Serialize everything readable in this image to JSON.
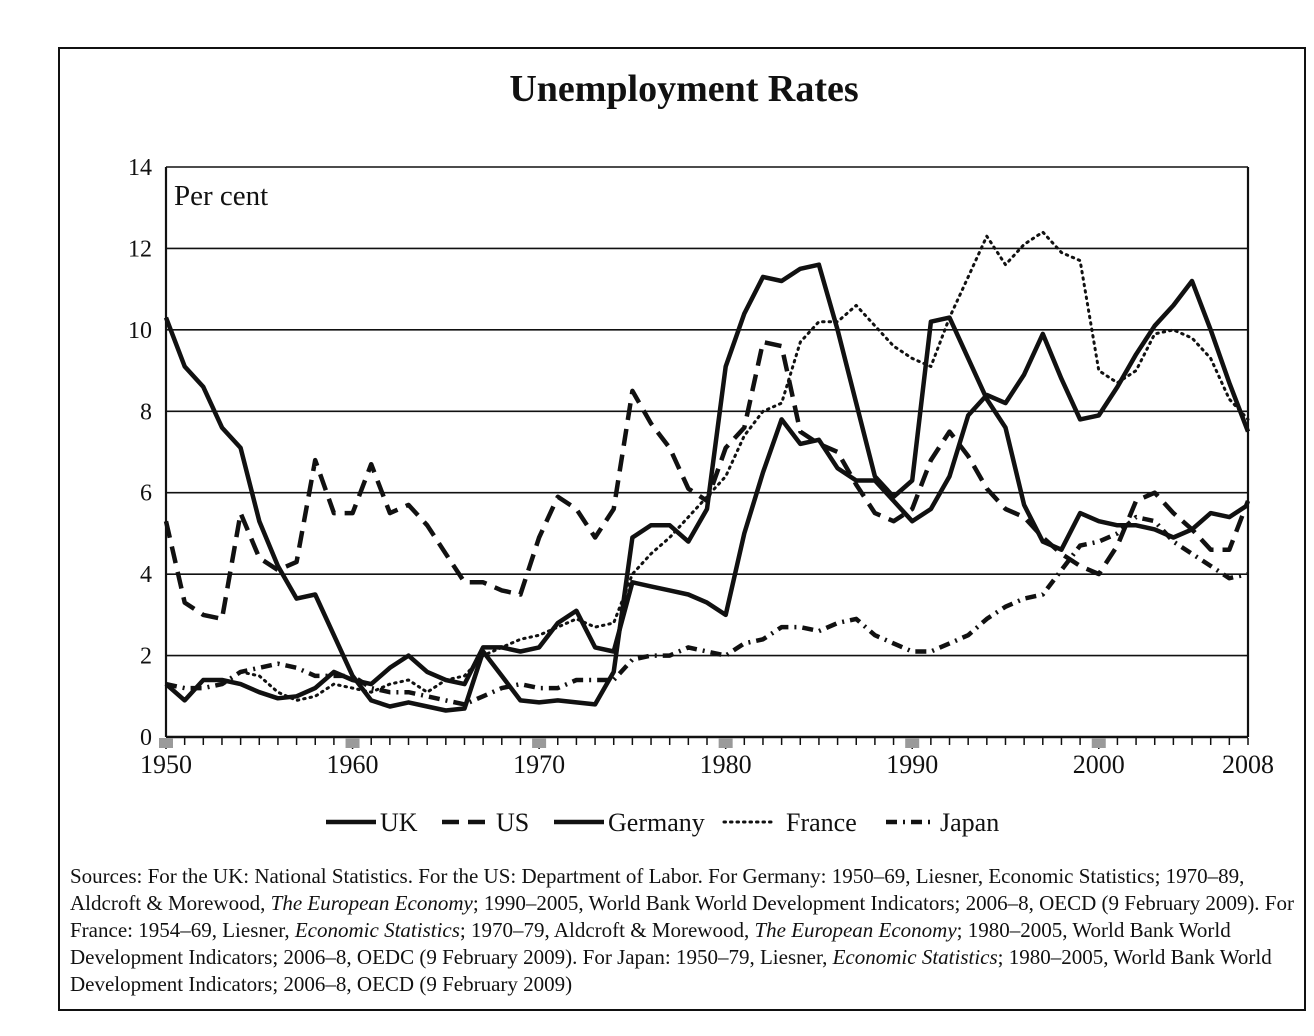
{
  "title": "Unemployment Rates",
  "sources": {
    "p1": "Sources: For the UK: National Statistics. For the US: Department of Labor. For Germany: 1950–69, Liesner, Economic Statistics; 1970–89, Aldcroft & Morewood, ",
    "p1_italic": "The European Economy",
    "p2": "; 1990–2005, World Bank World Development Indicators; 2006–8, OECD (9 February 2009). For France: 1954–69, Liesner, ",
    "p2_italic": "Economic Statistics",
    "p3": "; 1970–79, Aldcroft & Morewood, ",
    "p3_italic": "The European Economy",
    "p4": "; 1980–2005, World Bank World Development Indicators; 2006–8, OEDC (9 February 2009). For Japan: 1950–79, Liesner, ",
    "p4_italic": "Economic Statistics",
    "p5": "; 1980–2005, World Bank World Development Indicators; 2006–8, OECD (9 February 2009)"
  },
  "chart_data": {
    "type": "line",
    "title": "Unemployment Rates",
    "ylabel": "Per cent",
    "xlabel": "",
    "xlim": [
      1950,
      2008
    ],
    "ylim": [
      0,
      14
    ],
    "x_ticks": [
      "1950",
      "1960",
      "1970",
      "1980",
      "1990",
      "2000",
      "2008"
    ],
    "y_ticks": [
      "0",
      "2",
      "4",
      "6",
      "8",
      "10",
      "12",
      "14"
    ],
    "grid": "horizontal",
    "legend_position": "bottom",
    "series": [
      {
        "name": "UK",
        "style": "solid",
        "points": [
          [
            1950,
            1.3
          ],
          [
            1951,
            0.9
          ],
          [
            1952,
            1.4
          ],
          [
            1953,
            1.4
          ],
          [
            1954,
            1.3
          ],
          [
            1955,
            1.1
          ],
          [
            1956,
            0.95
          ],
          [
            1957,
            1.0
          ],
          [
            1958,
            1.2
          ],
          [
            1959,
            1.6
          ],
          [
            1960,
            1.4
          ],
          [
            1961,
            1.3
          ],
          [
            1962,
            1.7
          ],
          [
            1963,
            2.0
          ],
          [
            1964,
            1.6
          ],
          [
            1965,
            1.4
          ],
          [
            1966,
            1.3
          ],
          [
            1967,
            2.2
          ],
          [
            1968,
            2.2
          ],
          [
            1969,
            2.1
          ],
          [
            1970,
            2.2
          ],
          [
            1971,
            2.8
          ],
          [
            1972,
            3.1
          ],
          [
            1973,
            2.2
          ],
          [
            1974,
            2.1
          ],
          [
            1975,
            3.8
          ],
          [
            1976,
            3.7
          ],
          [
            1977,
            3.6
          ],
          [
            1978,
            3.5
          ],
          [
            1979,
            3.3
          ],
          [
            1980,
            3.0
          ],
          [
            1981,
            5.0
          ],
          [
            1982,
            6.5
          ],
          [
            1983,
            7.8
          ],
          [
            1984,
            7.2
          ],
          [
            1985,
            7.3
          ],
          [
            1986,
            6.6
          ],
          [
            1987,
            6.3
          ],
          [
            1988,
            6.3
          ],
          [
            1989,
            5.8
          ],
          [
            1990,
            5.3
          ],
          [
            1991,
            5.6
          ],
          [
            1992,
            6.4
          ],
          [
            1993,
            7.9
          ],
          [
            1994,
            8.4
          ],
          [
            1995,
            8.2
          ],
          [
            1996,
            8.9
          ],
          [
            1997,
            9.9
          ],
          [
            1998,
            8.8
          ],
          [
            1999,
            7.8
          ],
          [
            2000,
            7.9
          ],
          [
            2001,
            8.6
          ],
          [
            2002,
            9.4
          ],
          [
            2003,
            10.1
          ],
          [
            2004,
            10.6
          ],
          [
            2005,
            11.2
          ],
          [
            2006,
            10.0
          ],
          [
            2007,
            8.7
          ],
          [
            2008,
            7.5
          ]
        ]
      },
      {
        "name": "US",
        "style": "dashed",
        "points": [
          [
            1950,
            5.3
          ],
          [
            1951,
            3.3
          ],
          [
            1952,
            3.0
          ],
          [
            1953,
            2.9
          ],
          [
            1954,
            5.5
          ],
          [
            1955,
            4.4
          ],
          [
            1956,
            4.1
          ],
          [
            1957,
            4.3
          ],
          [
            1958,
            6.8
          ],
          [
            1959,
            5.5
          ],
          [
            1960,
            5.5
          ],
          [
            1961,
            6.7
          ],
          [
            1962,
            5.5
          ],
          [
            1963,
            5.7
          ],
          [
            1964,
            5.2
          ],
          [
            1965,
            4.5
          ],
          [
            1966,
            3.8
          ],
          [
            1967,
            3.8
          ],
          [
            1968,
            3.6
          ],
          [
            1969,
            3.5
          ],
          [
            1970,
            4.9
          ],
          [
            1971,
            5.9
          ],
          [
            1972,
            5.6
          ],
          [
            1973,
            4.9
          ],
          [
            1974,
            5.6
          ],
          [
            1975,
            8.5
          ],
          [
            1976,
            7.7
          ],
          [
            1977,
            7.1
          ],
          [
            1978,
            6.1
          ],
          [
            1979,
            5.8
          ],
          [
            1980,
            7.1
          ],
          [
            1981,
            7.6
          ],
          [
            1982,
            9.7
          ],
          [
            1983,
            9.6
          ],
          [
            1984,
            7.5
          ],
          [
            1985,
            7.2
          ],
          [
            1986,
            7.0
          ],
          [
            1987,
            6.2
          ],
          [
            1988,
            5.5
          ],
          [
            1989,
            5.3
          ],
          [
            1990,
            5.6
          ],
          [
            1991,
            6.8
          ],
          [
            1992,
            7.5
          ],
          [
            1993,
            6.9
          ],
          [
            1994,
            6.1
          ],
          [
            1995,
            5.6
          ],
          [
            1996,
            5.4
          ],
          [
            1997,
            4.9
          ],
          [
            1998,
            4.5
          ],
          [
            1999,
            4.2
          ],
          [
            2000,
            4.0
          ],
          [
            2001,
            4.7
          ],
          [
            2002,
            5.8
          ],
          [
            2003,
            6.0
          ],
          [
            2004,
            5.5
          ],
          [
            2005,
            5.1
          ],
          [
            2006,
            4.6
          ],
          [
            2007,
            4.6
          ],
          [
            2008,
            5.8
          ]
        ]
      },
      {
        "name": "Germany",
        "style": "solid",
        "points": [
          [
            1950,
            10.3
          ],
          [
            1951,
            9.1
          ],
          [
            1952,
            8.6
          ],
          [
            1953,
            7.6
          ],
          [
            1954,
            7.1
          ],
          [
            1955,
            5.3
          ],
          [
            1956,
            4.2
          ],
          [
            1957,
            3.4
          ],
          [
            1958,
            3.5
          ],
          [
            1959,
            2.5
          ],
          [
            1960,
            1.5
          ],
          [
            1961,
            0.9
          ],
          [
            1962,
            0.75
          ],
          [
            1963,
            0.85
          ],
          [
            1964,
            0.75
          ],
          [
            1965,
            0.65
          ],
          [
            1966,
            0.7
          ],
          [
            1967,
            2.1
          ],
          [
            1968,
            1.5
          ],
          [
            1969,
            0.9
          ],
          [
            1970,
            0.85
          ],
          [
            1971,
            0.9
          ],
          [
            1972,
            0.85
          ],
          [
            1973,
            0.8
          ],
          [
            1974,
            1.6
          ],
          [
            1975,
            4.9
          ],
          [
            1976,
            5.2
          ],
          [
            1977,
            5.2
          ],
          [
            1978,
            4.8
          ],
          [
            1979,
            5.6
          ],
          [
            1980,
            9.1
          ],
          [
            1981,
            10.4
          ],
          [
            1982,
            11.3
          ],
          [
            1983,
            11.2
          ],
          [
            1984,
            11.5
          ],
          [
            1985,
            11.6
          ],
          [
            1986,
            10.0
          ],
          [
            1987,
            8.2
          ],
          [
            1988,
            6.4
          ],
          [
            1989,
            5.9
          ],
          [
            1990,
            6.3
          ],
          [
            1991,
            10.2
          ],
          [
            1992,
            10.3
          ],
          [
            1993,
            9.3
          ],
          [
            1994,
            8.3
          ],
          [
            1995,
            7.6
          ],
          [
            1996,
            5.7
          ],
          [
            1997,
            4.8
          ],
          [
            1998,
            4.6
          ],
          [
            1999,
            5.5
          ],
          [
            2000,
            5.3
          ],
          [
            2001,
            5.2
          ],
          [
            2002,
            5.2
          ],
          [
            2003,
            5.1
          ],
          [
            2004,
            4.9
          ],
          [
            2005,
            5.1
          ],
          [
            2006,
            5.5
          ],
          [
            2007,
            5.4
          ],
          [
            2008,
            5.7
          ]
        ]
      },
      {
        "name": "France",
        "style": "dotted",
        "points": [
          [
            1954,
            1.6
          ],
          [
            1955,
            1.5
          ],
          [
            1956,
            1.1
          ],
          [
            1957,
            0.9
          ],
          [
            1958,
            1.0
          ],
          [
            1959,
            1.3
          ],
          [
            1960,
            1.2
          ],
          [
            1961,
            1.1
          ],
          [
            1962,
            1.3
          ],
          [
            1963,
            1.4
          ],
          [
            1964,
            1.1
          ],
          [
            1965,
            1.4
          ],
          [
            1966,
            1.5
          ],
          [
            1967,
            2.0
          ],
          [
            1968,
            2.2
          ],
          [
            1969,
            2.4
          ],
          [
            1970,
            2.5
          ],
          [
            1971,
            2.7
          ],
          [
            1972,
            2.9
          ],
          [
            1973,
            2.7
          ],
          [
            1974,
            2.8
          ],
          [
            1975,
            4.0
          ],
          [
            1976,
            4.5
          ],
          [
            1977,
            4.9
          ],
          [
            1978,
            5.4
          ],
          [
            1979,
            5.9
          ],
          [
            1980,
            6.4
          ],
          [
            1981,
            7.4
          ],
          [
            1982,
            8.0
          ],
          [
            1983,
            8.2
          ],
          [
            1984,
            9.7
          ],
          [
            1985,
            10.2
          ],
          [
            1986,
            10.2
          ],
          [
            1987,
            10.6
          ],
          [
            1988,
            10.1
          ],
          [
            1989,
            9.6
          ],
          [
            1990,
            9.3
          ],
          [
            1991,
            9.1
          ],
          [
            1992,
            10.3
          ],
          [
            1993,
            11.3
          ],
          [
            1994,
            12.3
          ],
          [
            1995,
            11.6
          ],
          [
            1996,
            12.1
          ],
          [
            1997,
            12.4
          ],
          [
            1998,
            11.9
          ],
          [
            1999,
            11.7
          ],
          [
            2000,
            9.0
          ],
          [
            2001,
            8.7
          ],
          [
            2002,
            9.0
          ],
          [
            2003,
            9.9
          ],
          [
            2004,
            10.0
          ],
          [
            2005,
            9.8
          ],
          [
            2006,
            9.3
          ],
          [
            2007,
            8.3
          ],
          [
            2008,
            7.8
          ]
        ]
      },
      {
        "name": "Japan",
        "style": "dash-dot",
        "points": [
          [
            1950,
            1.3
          ],
          [
            1951,
            1.2
          ],
          [
            1952,
            1.2
          ],
          [
            1953,
            1.3
          ],
          [
            1954,
            1.6
          ],
          [
            1955,
            1.7
          ],
          [
            1956,
            1.8
          ],
          [
            1957,
            1.7
          ],
          [
            1958,
            1.5
          ],
          [
            1959,
            1.5
          ],
          [
            1960,
            1.5
          ],
          [
            1961,
            1.2
          ],
          [
            1962,
            1.1
          ],
          [
            1963,
            1.1
          ],
          [
            1964,
            1.0
          ],
          [
            1965,
            0.9
          ],
          [
            1966,
            0.8
          ],
          [
            1967,
            1.0
          ],
          [
            1968,
            1.2
          ],
          [
            1969,
            1.3
          ],
          [
            1970,
            1.2
          ],
          [
            1971,
            1.2
          ],
          [
            1972,
            1.4
          ],
          [
            1973,
            1.4
          ],
          [
            1974,
            1.4
          ],
          [
            1975,
            1.9
          ],
          [
            1976,
            2.0
          ],
          [
            1977,
            2.0
          ],
          [
            1978,
            2.2
          ],
          [
            1979,
            2.1
          ],
          [
            1980,
            2.0
          ],
          [
            1981,
            2.3
          ],
          [
            1982,
            2.4
          ],
          [
            1983,
            2.7
          ],
          [
            1984,
            2.7
          ],
          [
            1985,
            2.6
          ],
          [
            1986,
            2.8
          ],
          [
            1987,
            2.9
          ],
          [
            1988,
            2.5
          ],
          [
            1989,
            2.3
          ],
          [
            1990,
            2.1
          ],
          [
            1991,
            2.1
          ],
          [
            1992,
            2.3
          ],
          [
            1993,
            2.5
          ],
          [
            1994,
            2.9
          ],
          [
            1995,
            3.2
          ],
          [
            1996,
            3.4
          ],
          [
            1997,
            3.5
          ],
          [
            1998,
            4.1
          ],
          [
            1999,
            4.7
          ],
          [
            2000,
            4.8
          ],
          [
            2001,
            5.0
          ],
          [
            2002,
            5.4
          ],
          [
            2003,
            5.3
          ],
          [
            2004,
            4.8
          ],
          [
            2005,
            4.5
          ],
          [
            2006,
            4.2
          ],
          [
            2007,
            3.9
          ],
          [
            2008,
            4.0
          ]
        ]
      }
    ]
  }
}
